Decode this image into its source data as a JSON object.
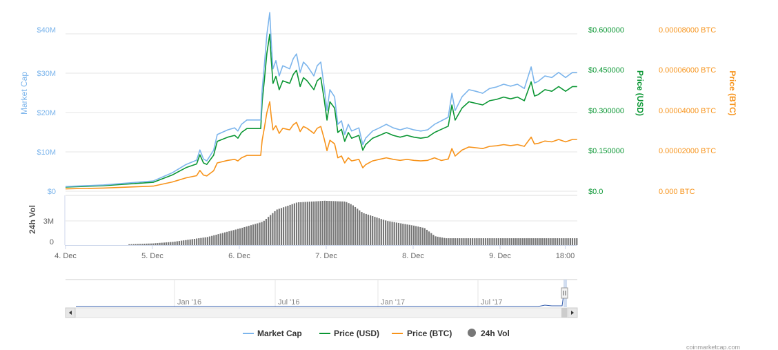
{
  "chart_data": {
    "type": "line",
    "colors": {
      "market_cap": "#7cb5ec",
      "price_usd": "#0a9633",
      "price_btc": "#f7931a",
      "volume": "#777777"
    },
    "x_unit": "hours since 4. Dec 00:00",
    "x_ticks": [
      "4. Dec",
      "5. Dec",
      "6. Dec",
      "7. Dec",
      "8. Dec",
      "9. Dec",
      "18:00"
    ],
    "x_tick_hours": [
      0,
      24,
      48,
      72,
      96,
      120,
      138
    ],
    "x_range": [
      0,
      141.3
    ],
    "x": [
      0,
      10.5,
      20,
      24.2,
      29.5,
      33.3,
      36.2,
      37.1,
      38.1,
      39,
      40.9,
      41.9,
      44.8,
      46.7,
      47.6,
      48.6,
      50.1,
      53.9,
      54.3,
      54.9,
      55.6,
      56.4,
      56.8,
      57.3,
      58.1,
      59,
      60,
      61.9,
      62.9,
      63.8,
      64.8,
      65.7,
      66.7,
      68.6,
      69.5,
      70.5,
      71.4,
      72.2,
      73,
      74.3,
      75.2,
      76.2,
      77.1,
      78.1,
      79,
      81,
      82.1,
      82.9,
      84.8,
      86.7,
      88.6,
      90.5,
      92.4,
      94.3,
      96.2,
      98.1,
      100,
      101.9,
      103.8,
      105.7,
      106.7,
      107.6,
      109.5,
      111.4,
      113.3,
      115.2,
      117.1,
      119,
      121,
      122.9,
      124.8,
      126.7,
      128.6,
      129.5,
      130.5,
      132.4,
      134.3,
      136.2,
      138.1,
      140,
      141.3
    ],
    "series": [
      {
        "name": "Market Cap",
        "axis": "market_cap",
        "unit": "USD millions",
        "values": [
          1.2,
          1.6,
          2.3,
          2.6,
          4.7,
          6.8,
          7.9,
          10.5,
          8.2,
          7.7,
          10.4,
          14.4,
          15.6,
          16.1,
          15.3,
          17.0,
          18.1,
          18.1,
          25.8,
          31.9,
          39.8,
          45.4,
          38.1,
          31.1,
          33.2,
          29.3,
          31.9,
          31.1,
          33.7,
          34.9,
          30.2,
          32.8,
          31.9,
          29.3,
          31.9,
          32.8,
          26.7,
          20.5,
          25.8,
          24.0,
          17.0,
          17.9,
          14.4,
          17.0,
          15.3,
          16.1,
          11.8,
          13.5,
          15.3,
          16.1,
          17.0,
          16.1,
          15.6,
          16.1,
          15.6,
          15.3,
          15.6,
          17.0,
          17.9,
          18.8,
          24.9,
          20.5,
          24.0,
          25.8,
          25.4,
          24.9,
          26.1,
          26.5,
          27.2,
          26.7,
          27.2,
          26.1,
          31.6,
          27.5,
          27.9,
          29.3,
          28.9,
          30.2,
          28.9,
          30.2,
          30.2
        ]
      },
      {
        "name": "Price (USD)",
        "axis": "price_usd",
        "unit": "USD",
        "values": [
          0.016,
          0.021,
          0.03,
          0.034,
          0.062,
          0.09,
          0.104,
          0.139,
          0.108,
          0.102,
          0.137,
          0.19,
          0.206,
          0.213,
          0.202,
          0.224,
          0.239,
          0.239,
          0.341,
          0.421,
          0.525,
          0.599,
          0.503,
          0.411,
          0.438,
          0.387,
          0.421,
          0.411,
          0.445,
          0.461,
          0.399,
          0.433,
          0.421,
          0.387,
          0.421,
          0.433,
          0.352,
          0.271,
          0.341,
          0.317,
          0.224,
          0.236,
          0.19,
          0.224,
          0.202,
          0.213,
          0.156,
          0.178,
          0.202,
          0.213,
          0.224,
          0.213,
          0.206,
          0.213,
          0.206,
          0.202,
          0.206,
          0.224,
          0.236,
          0.248,
          0.329,
          0.271,
          0.317,
          0.341,
          0.335,
          0.329,
          0.345,
          0.35,
          0.359,
          0.352,
          0.359,
          0.345,
          0.417,
          0.363,
          0.368,
          0.387,
          0.381,
          0.399,
          0.381,
          0.399,
          0.399
        ]
      },
      {
        "name": "Price (BTC)",
        "axis": "price_btc",
        "unit": "BTC",
        "values": [
          1.2e-06,
          1.6e-06,
          2.3e-06,
          2.6e-06,
          4.7e-06,
          6.8e-06,
          7.9e-06,
          1.06e-05,
          8.2e-06,
          7.8e-06,
          1.04e-05,
          1.44e-05,
          1.57e-05,
          1.62e-05,
          1.54e-05,
          1.7e-05,
          1.82e-05,
          1.82e-05,
          2.59e-05,
          3.2e-05,
          3.99e-05,
          4.55e-05,
          3.82e-05,
          3.12e-05,
          3.33e-05,
          2.94e-05,
          3.2e-05,
          3.12e-05,
          3.38e-05,
          3.5e-05,
          3.03e-05,
          3.29e-05,
          3.2e-05,
          2.94e-05,
          3.2e-05,
          3.29e-05,
          2.68e-05,
          2.06e-05,
          2.59e-05,
          2.41e-05,
          1.7e-05,
          1.79e-05,
          1.44e-05,
          1.7e-05,
          1.54e-05,
          1.62e-05,
          1.19e-05,
          1.35e-05,
          1.54e-05,
          1.62e-05,
          1.7e-05,
          1.62e-05,
          1.57e-05,
          1.62e-05,
          1.57e-05,
          1.54e-05,
          1.57e-05,
          1.7e-05,
          1.56e-05,
          1.64e-05,
          2.17e-05,
          1.79e-05,
          2.09e-05,
          2.25e-05,
          2.21e-05,
          2.17e-05,
          2.28e-05,
          2.31e-05,
          2.37e-05,
          2.32e-05,
          2.37e-05,
          2.28e-05,
          2.75e-05,
          2.4e-05,
          2.43e-05,
          2.55e-05,
          2.51e-05,
          2.63e-05,
          2.51e-05,
          2.63e-05,
          2.63e-05
        ]
      }
    ],
    "volume": {
      "name": "24h Vol",
      "unit": "USD millions",
      "bar_interval_hours": 1,
      "keypoints_hours": [
        17.1,
        23.8,
        29.5,
        39,
        48.2,
        54.3,
        55.8,
        58.1,
        63.8,
        71.4,
        77.1,
        79,
        81.9,
        88.6,
        96.2,
        99,
        101.9,
        104.8,
        141.3
      ],
      "keypoints_values": [
        0.1,
        0.2,
        0.4,
        1.0,
        2.1,
        2.9,
        3.5,
        4.4,
        5.3,
        5.5,
        5.4,
        5.0,
        4.0,
        3.0,
        2.4,
        2.1,
        1.1,
        0.85,
        0.85
      ]
    },
    "axes": {
      "market_cap": {
        "title": "Market Cap",
        "range": [
          0,
          40
        ],
        "ticks": [
          "$0",
          "$10M",
          "$20M",
          "$30M",
          "$40M"
        ]
      },
      "price_usd": {
        "title": "Price (USD)",
        "range": [
          0,
          0.6
        ],
        "ticks": [
          "$0.0",
          "$0.150000",
          "$0.300000",
          "$0.450000",
          "$0.600000"
        ]
      },
      "price_btc": {
        "title": "Price (BTC)",
        "range": [
          0,
          8e-05
        ],
        "ticks": [
          "0.000 BTC",
          "0.00002000 BTC",
          "0.00004000 BTC",
          "0.00006000 BTC",
          "0.00008000 BTC"
        ]
      },
      "volume": {
        "title": "24h Vol",
        "range": [
          0,
          3
        ],
        "ticks": [
          "0",
          "3M"
        ]
      }
    },
    "navigator": {
      "labels": [
        "Jan '16",
        "Jul '16",
        "Jan '17",
        "Jul '17"
      ]
    },
    "legend": {
      "placement": "bottom-center",
      "items": [
        "Market Cap",
        "Price (USD)",
        "Price (BTC)",
        "24h Vol"
      ]
    },
    "grid": true
  },
  "credit": "coinmarketcap.com"
}
